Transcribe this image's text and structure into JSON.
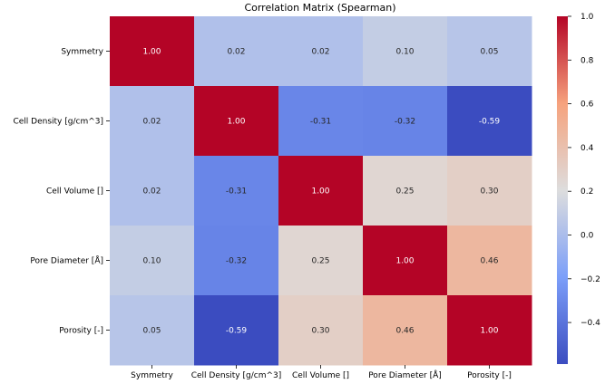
{
  "chart_data": {
    "type": "heatmap",
    "title": "Correlation Matrix (Spearman)",
    "row_labels": [
      "Symmetry",
      "Cell Density [g/cm^3]",
      "Cell Volume []",
      "Pore Diameter [Å]",
      "Porosity [-]"
    ],
    "col_labels": [
      "Symmetry",
      "Cell Density [g/cm^3]",
      "Cell Volume []",
      "Pore Diameter [Å]",
      "Porosity [-]"
    ],
    "values": [
      [
        1.0,
        0.02,
        0.02,
        0.1,
        0.05
      ],
      [
        0.02,
        1.0,
        -0.31,
        -0.32,
        -0.59
      ],
      [
        0.02,
        -0.31,
        1.0,
        0.25,
        0.3
      ],
      [
        0.1,
        -0.32,
        0.25,
        1.0,
        0.46
      ],
      [
        0.05,
        -0.59,
        0.3,
        0.46,
        1.0
      ]
    ],
    "colormap": "coolwarm",
    "colorbar": {
      "range": [
        -0.59,
        1.0
      ],
      "ticks": [
        1.0,
        0.8,
        0.6,
        0.4,
        0.2,
        0.0,
        -0.2,
        -0.4
      ],
      "tick_labels": [
        "1.0",
        "0.8",
        "0.6",
        "0.4",
        "0.2",
        "0.0",
        "−0.2",
        "−0.4"
      ]
    },
    "annotations_format": "0.00"
  }
}
